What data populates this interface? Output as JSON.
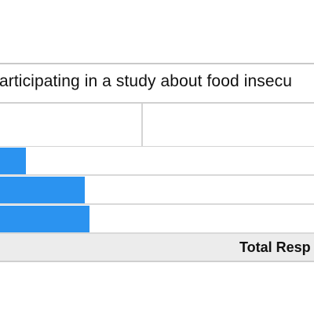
{
  "question": {
    "text": "articipating in a study about food insecu"
  },
  "responses": [
    {
      "fraction": 0.085
    },
    {
      "fraction": 0.27
    },
    {
      "fraction": 0.285
    }
  ],
  "footer": {
    "total_label": "Total Resp"
  },
  "colors": {
    "bar": "#2b93f0",
    "footer_bg": "#ececec",
    "border": "#d0d0d0"
  }
}
